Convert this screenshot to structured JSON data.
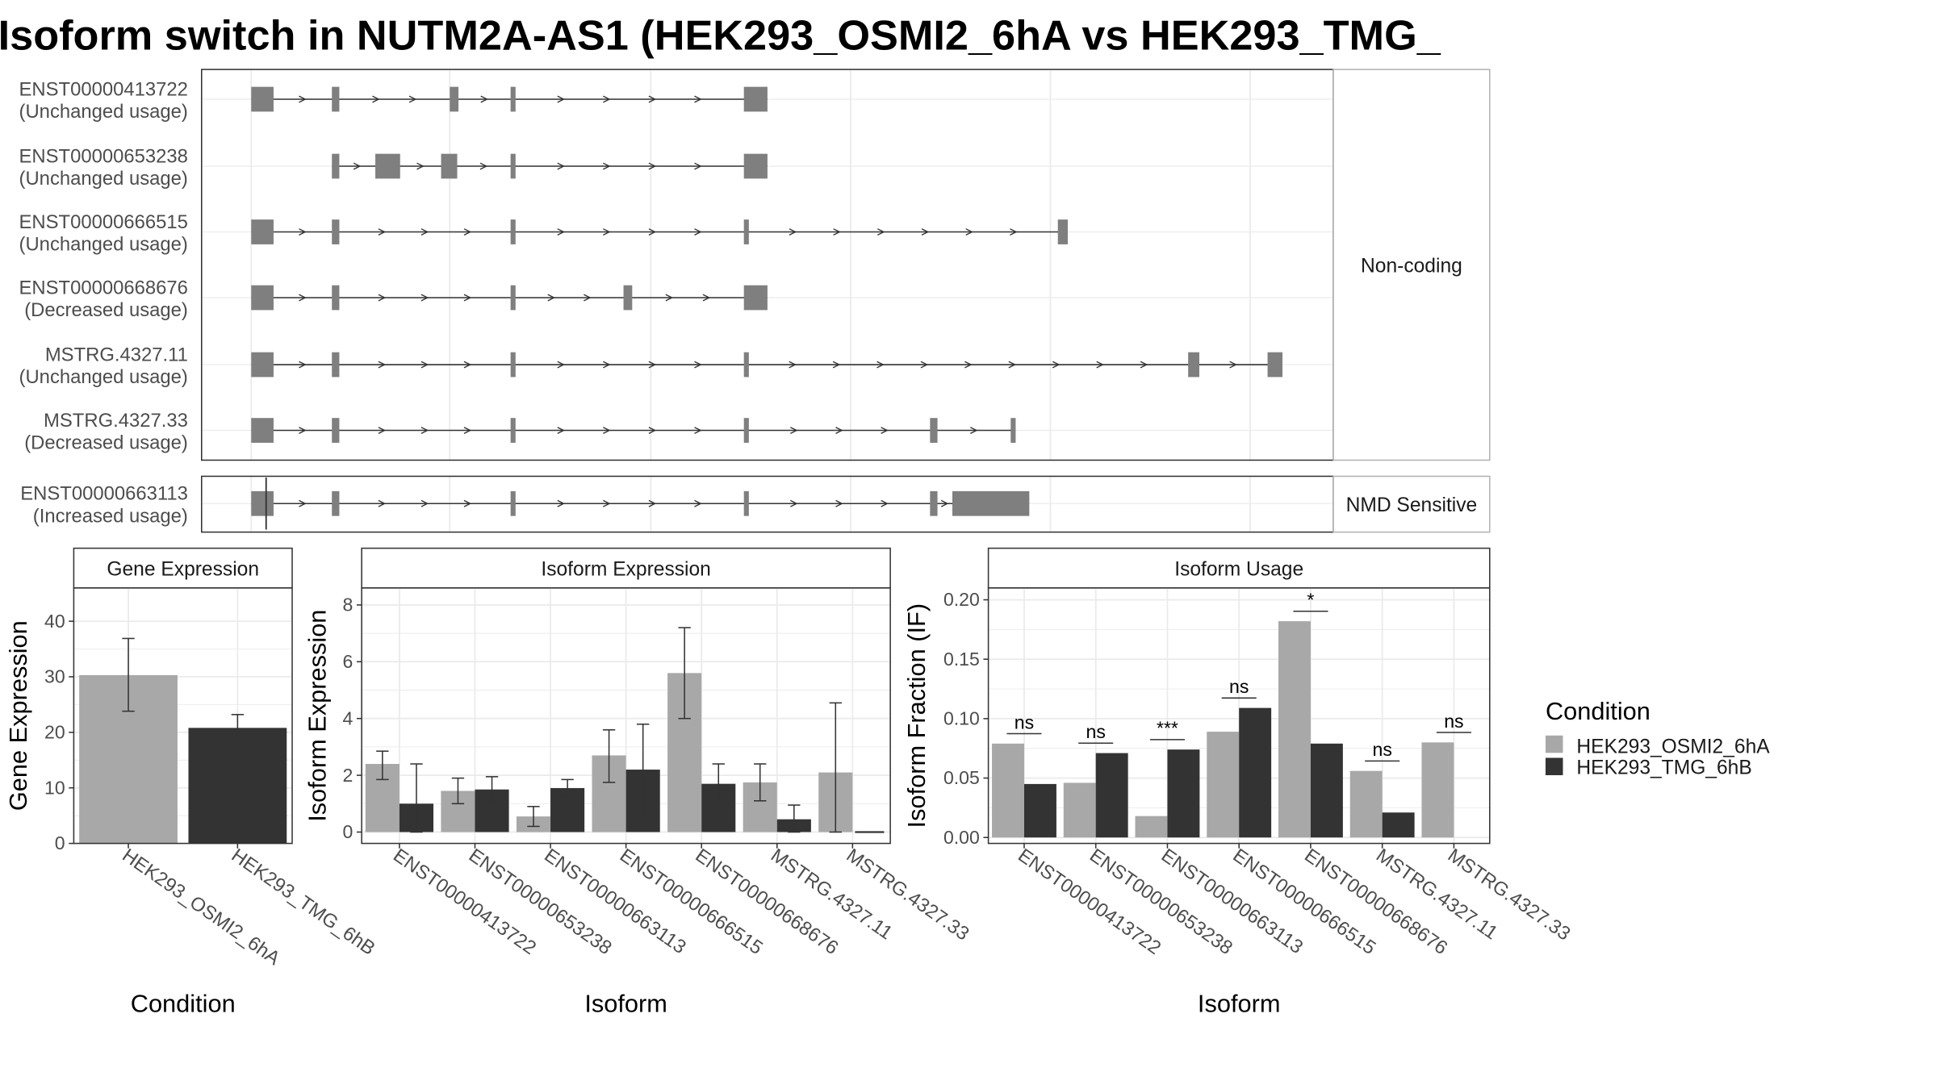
{
  "title": "Isoform switch in NUTM2A-AS1 (HEK293_OSMI2_6hA vs HEK293_TMG_",
  "colors": {
    "cond1": "#a8a8a8",
    "cond2": "#333333",
    "exon": "#7f7f7f",
    "grid": "#ebebeb",
    "strip": "#ffffff"
  },
  "structure": {
    "facets": [
      {
        "label": "Non-coding",
        "transcripts": [
          {
            "id": "ENST00000413722",
            "usage": "(Unchanged usage)"
          },
          {
            "id": "ENST00000653238",
            "usage": "(Unchanged usage)"
          },
          {
            "id": "ENST00000666515",
            "usage": "(Unchanged usage)"
          },
          {
            "id": "ENST00000668676",
            "usage": "(Decreased usage)"
          },
          {
            "id": "MSTRG.4327.11",
            "usage": "(Unchanged usage)"
          },
          {
            "id": "MSTRG.4327.33",
            "usage": "(Decreased usage)"
          }
        ]
      },
      {
        "label": "NMD Sensitive",
        "transcripts": [
          {
            "id": "ENST00000663113",
            "usage": "(Increased usage)"
          }
        ]
      }
    ]
  },
  "chart_data": [
    {
      "type": "bar",
      "panel": "Gene Expression",
      "xlabel": "Condition",
      "ylabel": "Gene Expression",
      "ylim": [
        0,
        46
      ],
      "yticks": [
        0,
        10,
        20,
        30,
        40
      ],
      "categories": [
        "HEK293_OSMI2_6hA",
        "HEK293_TMG_6hB"
      ],
      "values": [
        30.3,
        20.8
      ],
      "err_low": [
        23.8,
        18.6
      ],
      "err_high": [
        36.9,
        23.2
      ]
    },
    {
      "type": "bar",
      "panel": "Isoform Expression",
      "xlabel": "Isoform",
      "ylabel": "Isoform Expression",
      "ylim": [
        -0.4,
        8.6
      ],
      "yticks": [
        0,
        2,
        4,
        6,
        8
      ],
      "categories": [
        "ENST00000413722",
        "ENST00000653238",
        "ENST00000663113",
        "ENST00000666515",
        "ENST00000668676",
        "MSTRG.4327.11",
        "MSTRG.4327.33"
      ],
      "series": [
        {
          "name": "HEK293_OSMI2_6hA",
          "values": [
            2.4,
            1.45,
            0.55,
            2.7,
            5.6,
            1.75,
            2.1
          ],
          "err_low": [
            1.85,
            1.0,
            0.2,
            1.75,
            4.0,
            1.1,
            null
          ],
          "err_high": [
            2.85,
            1.9,
            0.9,
            3.6,
            7.2,
            2.4,
            null
          ]
        },
        {
          "name": "HEK293_TMG_6hB",
          "values": [
            1.0,
            1.5,
            1.55,
            2.2,
            1.7,
            0.45,
            0.0
          ],
          "err_low": [
            0.0,
            1.05,
            1.25,
            0.6,
            1.0,
            0.0,
            null
          ],
          "err_high": [
            2.4,
            1.95,
            1.85,
            3.8,
            2.4,
            0.95,
            null
          ]
        }
      ],
      "extra_errors": [
        {
          "category_index": 6,
          "low": 0.0,
          "high": 4.55
        }
      ]
    },
    {
      "type": "bar",
      "panel": "Isoform Usage",
      "xlabel": "Isoform",
      "ylabel": "Isoform Fraction (IF)",
      "ylim": [
        -0.005,
        0.21
      ],
      "yticks": [
        "0.00",
        "0.05",
        "0.10",
        "0.15",
        "0.20"
      ],
      "categories": [
        "ENST00000413722",
        "ENST00000653238",
        "ENST00000663113",
        "ENST00000666515",
        "ENST00000668676",
        "MSTRG.4327.11",
        "MSTRG.4327.33"
      ],
      "series": [
        {
          "name": "HEK293_OSMI2_6hA",
          "values": [
            0.079,
            0.046,
            0.018,
            0.089,
            0.182,
            0.056,
            0.08
          ]
        },
        {
          "name": "HEK293_TMG_6hB",
          "values": [
            0.045,
            0.071,
            0.074,
            0.109,
            0.079,
            0.021,
            null
          ]
        }
      ],
      "significance": [
        "ns",
        "ns",
        "***",
        "ns",
        "*",
        "ns",
        "ns"
      ]
    }
  ],
  "legend": {
    "title": "Condition",
    "items": [
      "HEK293_OSMI2_6hA",
      "HEK293_TMG_6hB"
    ]
  }
}
